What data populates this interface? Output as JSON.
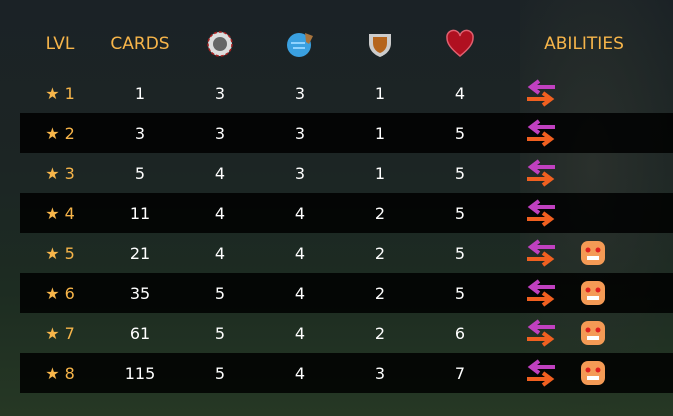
{
  "headers": {
    "level": "LVL",
    "cards": "CARDS",
    "attack_icon": "melee-attack-icon",
    "speed_icon": "speed-icon",
    "armor_icon": "shield-icon",
    "health_icon": "heart-icon",
    "abilities": "ABILITIES"
  },
  "rows": [
    {
      "level": "★ 1",
      "cards": "1",
      "attack": "3",
      "speed": "3",
      "armor": "1",
      "health": "4",
      "abilities": [
        "swap-arrows-icon"
      ]
    },
    {
      "level": "★ 2",
      "cards": "3",
      "attack": "3",
      "speed": "3",
      "armor": "1",
      "health": "5",
      "abilities": [
        "swap-arrows-icon"
      ]
    },
    {
      "level": "★ 3",
      "cards": "5",
      "attack": "4",
      "speed": "3",
      "armor": "1",
      "health": "5",
      "abilities": [
        "swap-arrows-icon"
      ]
    },
    {
      "level": "★ 4",
      "cards": "11",
      "attack": "4",
      "speed": "4",
      "armor": "2",
      "health": "5",
      "abilities": [
        "swap-arrows-icon"
      ]
    },
    {
      "level": "★ 5",
      "cards": "21",
      "attack": "4",
      "speed": "4",
      "armor": "2",
      "health": "5",
      "abilities": [
        "swap-arrows-icon",
        "angry-face-icon"
      ]
    },
    {
      "level": "★ 6",
      "cards": "35",
      "attack": "5",
      "speed": "4",
      "armor": "2",
      "health": "5",
      "abilities": [
        "swap-arrows-icon",
        "angry-face-icon"
      ]
    },
    {
      "level": "★ 7",
      "cards": "61",
      "attack": "5",
      "speed": "4",
      "armor": "2",
      "health": "6",
      "abilities": [
        "swap-arrows-icon",
        "angry-face-icon"
      ]
    },
    {
      "level": "★ 8",
      "cards": "115",
      "attack": "5",
      "speed": "4",
      "armor": "3",
      "health": "7",
      "abilities": [
        "swap-arrows-icon",
        "angry-face-icon"
      ]
    }
  ],
  "colors": {
    "header": "#f7b54a",
    "value": "#ffffff"
  }
}
